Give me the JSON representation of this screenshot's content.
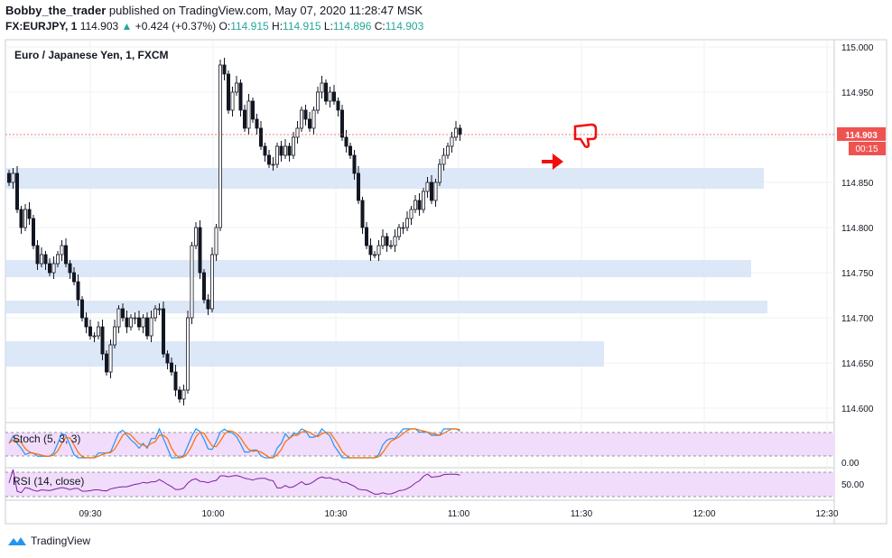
{
  "header": {
    "user": "Bobby_the_trader",
    "published_text": "published on TradingView.com, May 07, 2020 11:28:47 MSK",
    "symbol": "FX:EURJPY, 1",
    "last": "114.903",
    "change": "+0.424 (+0.37%)",
    "O_label": "O:",
    "O": "114.915",
    "H_label": "H:",
    "H": "114.915",
    "L_label": "L:",
    "L": "114.896",
    "C_label": "C:",
    "C": "114.903"
  },
  "pane_title": "Euro / Japanese Yen, 1, FXCM",
  "price_badge": "114.903",
  "countdown_badge": "00:15",
  "stoch_label": "Stoch (5, 3, 3)",
  "stoch_axis_value": "0.00",
  "rsi_label": "RSI (14, close)",
  "rsi_axis_value": "50.00",
  "footer": {
    "brand": "TradingView"
  },
  "colors": {
    "up": "#26a69a",
    "down": "#ef5350",
    "candle": "#131722",
    "zone": "#d6e3f7",
    "band": "#f1dcfb",
    "stoch_k": "#2196f3",
    "stoch_d": "#ff6d00",
    "rsi": "#7b1fa2",
    "price_line": "#ef5350",
    "marker": "#f40d0d"
  },
  "chart_data": {
    "type": "candlestick",
    "title": "Euro / Japanese Yen, 1, FXCM",
    "ylim": [
      114.58,
      115.005
    ],
    "y_ticks": [
      "115.000",
      "114.950",
      "114.900",
      "114.850",
      "114.800",
      "114.750",
      "114.700",
      "114.650",
      "114.600"
    ],
    "x_ticks": [
      "09:30",
      "10:00",
      "10:30",
      "11:00",
      "11:30",
      "12:00",
      "12:30"
    ],
    "current_price": 114.903,
    "support_zones": [
      {
        "low": 114.843,
        "high": 114.866
      },
      {
        "low": 114.745,
        "high": 114.764
      },
      {
        "low": 114.705,
        "high": 114.719
      },
      {
        "low": 114.646,
        "high": 114.674
      }
    ],
    "close_series": [
      114.85,
      114.86,
      114.82,
      114.8,
      114.82,
      114.81,
      114.78,
      114.76,
      114.77,
      114.76,
      114.75,
      114.76,
      114.77,
      114.78,
      114.76,
      114.75,
      114.74,
      114.72,
      114.7,
      114.69,
      114.68,
      114.68,
      114.69,
      114.66,
      114.64,
      114.67,
      114.69,
      114.71,
      114.7,
      114.69,
      114.7,
      114.7,
      114.69,
      114.7,
      114.68,
      114.7,
      114.71,
      114.71,
      114.66,
      114.65,
      114.64,
      114.62,
      114.61,
      114.62,
      114.7,
      114.78,
      114.8,
      114.75,
      114.72,
      114.71,
      114.77,
      114.8,
      114.98,
      114.97,
      114.93,
      114.95,
      114.96,
      114.93,
      114.91,
      114.94,
      114.92,
      114.91,
      114.89,
      114.88,
      114.87,
      114.87,
      114.89,
      114.88,
      114.89,
      114.88,
      114.9,
      114.91,
      114.93,
      114.92,
      114.91,
      114.93,
      114.95,
      114.96,
      114.94,
      114.95,
      114.94,
      114.93,
      114.9,
      114.89,
      114.88,
      114.86,
      114.83,
      114.8,
      114.78,
      114.77,
      114.77,
      114.78,
      114.79,
      114.78,
      114.78,
      114.79,
      114.8,
      114.8,
      114.81,
      114.82,
      114.83,
      114.82,
      114.84,
      114.85,
      114.83,
      114.85,
      114.87,
      114.88,
      114.89,
      114.9,
      114.91,
      114.903
    ]
  }
}
